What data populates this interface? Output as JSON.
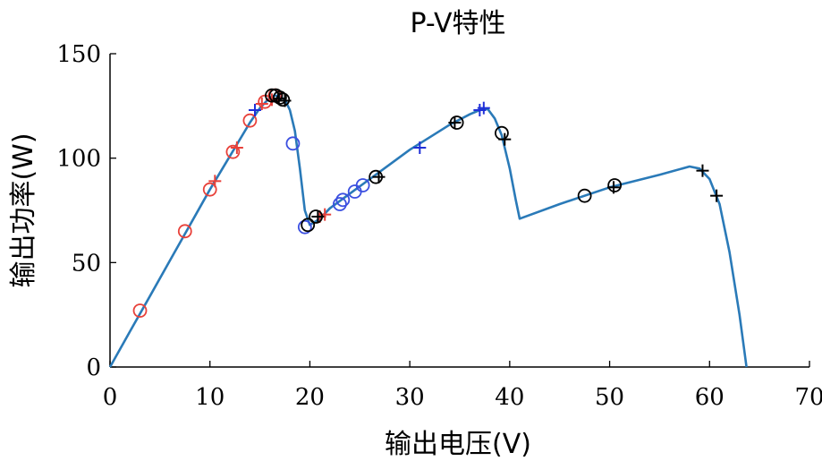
{
  "chart_data": {
    "type": "line",
    "title": "P-V特性",
    "xlabel": "输出电压(V)",
    "ylabel": "输出功率(W)",
    "xlim": [
      0,
      70
    ],
    "ylim": [
      0,
      150
    ],
    "xticks": [
      0,
      10,
      20,
      30,
      40,
      50,
      60,
      70
    ],
    "yticks": [
      0,
      50,
      100,
      150
    ],
    "grid": false,
    "curve": {
      "name": "P-V curve",
      "color": "#2a7ab8",
      "x": [
        0,
        2,
        4,
        6,
        8,
        10,
        12,
        14,
        15,
        16,
        16.5,
        17,
        17.5,
        18,
        18.5,
        19,
        19.5,
        20,
        21,
        22,
        24,
        26,
        28,
        30,
        32,
        34,
        36,
        37,
        37.8,
        38.5,
        39.2,
        40,
        40.6,
        41,
        45,
        50,
        55,
        58,
        59,
        60,
        61,
        62,
        63,
        63.7
      ],
      "y": [
        0,
        17,
        34,
        51,
        68,
        85,
        101,
        117,
        124,
        129,
        130,
        129.5,
        128,
        123,
        113,
        95,
        75,
        68,
        71,
        76,
        83,
        90,
        97,
        104,
        110,
        116,
        121,
        123,
        123.5,
        119,
        111,
        95,
        80,
        71,
        78,
        86,
        92,
        96,
        95,
        90,
        78,
        55,
        25,
        0
      ]
    },
    "series": [
      {
        "name": "red-o",
        "color": "#e8413a",
        "marker": "circle",
        "x": [
          3,
          7.5,
          10,
          12.3,
          14,
          15.5,
          16.5
        ],
        "y": [
          27,
          65,
          85,
          103,
          118,
          127,
          130
        ]
      },
      {
        "name": "red-+",
        "color": "#e8413a",
        "marker": "plus",
        "x": [
          10.5,
          12.7,
          15.2,
          16.2,
          21,
          21.5
        ],
        "y": [
          89,
          105,
          126,
          128,
          72,
          73
        ]
      },
      {
        "name": "blue-o",
        "color": "#3b4fe0",
        "marker": "circle",
        "x": [
          18.3,
          19.5,
          23,
          23.3,
          24.5,
          25.3
        ],
        "y": [
          107,
          67,
          78,
          80,
          84,
          87
        ]
      },
      {
        "name": "blue-+",
        "color": "#1f2fd8",
        "marker": "plus",
        "x": [
          14.5,
          31,
          37,
          37.4
        ],
        "y": [
          123,
          105,
          123,
          124
        ]
      },
      {
        "name": "black-o",
        "color": "#000000",
        "marker": "circle",
        "x": [
          16.2,
          16.6,
          17,
          17.3,
          19.8,
          20.6,
          26.6,
          34.7,
          39.2,
          47.5,
          50.5
        ],
        "y": [
          130,
          130,
          129,
          128,
          68,
          72,
          91,
          117,
          112,
          82,
          87
        ]
      },
      {
        "name": "black-+",
        "color": "#000000",
        "marker": "plus",
        "x": [
          16.9,
          17.5,
          20.8,
          26.9,
          34.5,
          39.5,
          50.4,
          59.3,
          60.7
        ],
        "y": [
          128.5,
          127.5,
          72,
          91,
          117,
          109,
          86,
          94,
          82
        ]
      }
    ]
  }
}
